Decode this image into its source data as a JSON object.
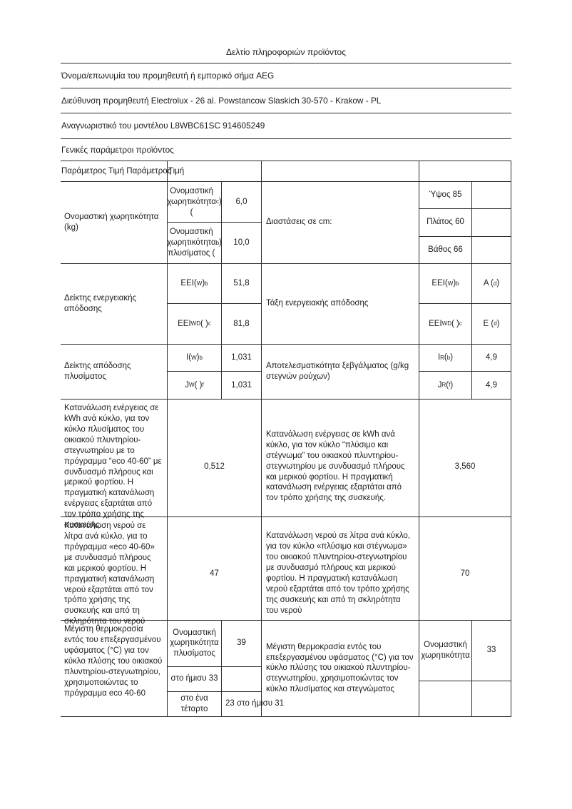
{
  "doc": {
    "title": "Δελτίο πληροφοριών προϊόντος",
    "supplier": "Όνομα/επωνυμία του προμηθευτή ή εμπορικό σήμα AEG",
    "address": "Διεύθυνση προμηθευτή Electrolux - 26 al. Powstancow Slaskich 30-570 - Krakow - PL",
    "model": "Αναγνωριστικό του μοντέλου L8WBC61SC 914605249",
    "section": "Γενικές παράμετροι προϊόντος",
    "header_col1": "Παράμετρος Τιμή Παράμετρος",
    "header_col2": "Τιμή"
  },
  "rows": {
    "capacity": {
      "label": "Ονομαστική χωρητικότητα (kg)",
      "sub": [
        {
          "label_html": "Ονομαστική χωρητικότητα (<sup>c</sup>)",
          "value": "6,0"
        },
        {
          "label_html": "Ονομαστική χωρητικότητα πλυσίματος (<sup>b</sup>)",
          "value": "10,0"
        }
      ],
      "mid_label": "Διαστάσεις σε cm:",
      "right_sub": [
        {
          "label": "Ύψος 85",
          "value": ""
        },
        {
          "label": "Πλάτος 60",
          "value": ""
        },
        {
          "label": "Βάθος 66",
          "value": ""
        }
      ]
    },
    "energy_index": {
      "label": "Δείκτης ενεργειακής απόδοσης",
      "sub": [
        {
          "label_html": "EEI(<sub>W</sub>)<sup>b</sup>",
          "value": "51,8"
        },
        {
          "label_html": "EEI<sub>WD</sub>( )<sup>c</sup>",
          "value": "81,8"
        }
      ],
      "mid_label": "Τάξη ενεργειακής απόδοσης",
      "right_sub": [
        {
          "label_html": "EEI(<sub>W</sub>)<sup>b</sup>",
          "value_html": "A (<sup>d</sup>)"
        },
        {
          "label_html": "EEI<sub>WD</sub>( )<sup>c</sup>",
          "value_html": "E (<sup>d</sup>)"
        }
      ]
    },
    "wash_index": {
      "label": "Δείκτης απόδοσης πλυσίματος",
      "sub": [
        {
          "label_html": "I(<sub>W</sub>)<sup>b</sup>",
          "value": "1,031"
        },
        {
          "label_html": "J<sub>W</sub>( )<sup>f</sup>",
          "value": "1,031"
        }
      ],
      "mid_label": "Αποτελεσματικότητα ξεβγάλματος (g/kg στεγνών ρούχων)",
      "right_sub": [
        {
          "label_html": "I<sub>R</sub>(<sup>b</sup>)",
          "value": "4,9"
        },
        {
          "label_html": "J<sub>R</sub>(<sup>f</sup>)",
          "value": "4,9"
        }
      ]
    },
    "energy_consumption": {
      "label": "Κατανάλωση ενέργειας σε kWh ανά κύκλο, για τον κύκλο πλυσίματος του οικιακού πλυντηρίου-στεγνωτηρίου με το πρόγραμμα “eco 40-60” με συνδυασμό πλήρους και μερικού φορτίου. Η πραγματική κατανάλωση ενέργειας εξαρτάται από τον τρόπο χρήσης της συσκευής.",
      "value": "0,512",
      "mid_label": "Κατανάλωση ενέργειας σε kWh ανά κύκλο, για τον κύκλο “πλύσιμο και στέγνωμα” του οικιακού πλυντηρίου- στεγνωτηρίου με συνδυασμό πλήρους και μερικού φορτίου. Η πραγματική κατανάλωση ενέργειας εξαρτάται από τον τρόπο χρήσης της συσκευής.",
      "right_value": "3,560"
    },
    "water_consumption": {
      "label": "Κατανάλωση νερού σε λίτρα ανά κύκλο, για το πρόγραμμα «eco 40-60» με συνδυασμό πλήρους και μερικού φορτίου. Η πραγματική κατανάλωση νερού εξαρτάται από τον τρόπο χρήσης της συσκευής και από τη σκληρότητα του νερού",
      "value": "47",
      "mid_label": "Κατανάλωση νερού σε λίτρα ανά κύκλο, για τον κύκλο «πλύσιμο και στέγνωμα» του οικιακού πλυντηρίου-στεγνωτηρίου με συνδυασμό πλήρους και μερικού φορτίου. Η πραγματική κατανάλωση νερού εξαρτάται από τον τρόπο χρήσης της συσκευής και από τη σκληρότητα του νερού",
      "right_value": "70"
    },
    "max_temperature": {
      "label": "Μέγιστη θερμοκρασία εντός του επεξεργασμένου υφάσματος (°C) για τον κύκλο πλύσης του οικιακού πλυντηρίου-στεγνωτηρίου, χρησιμοποιώντας το πρόγραμμα eco 40-60",
      "sub": [
        {
          "label": "Ονομαστική χωρητικότητα πλυσίματος",
          "value": "39"
        },
        {
          "label": "στο ήμισυ 33",
          "value": ""
        },
        {
          "label": "στο ένα τέταρτο",
          "value": "23 στο ήμισυ 31"
        }
      ],
      "mid_label": "Μέγιστη θερμοκρασία εντός του επεξεργασμένου υφάσματος (°C) για τον κύκλο πλύσης του οικιακού πλυντηρίου-στεγνωτηρίου, χρησιμοποιώντας τον κύκλο πλυσίματος και στεγνώματος",
      "right_sub": [
        {
          "label": "Ονομαστική χωρητικότητα",
          "value": "33"
        },
        {
          "label": "",
          "value": ""
        }
      ]
    }
  }
}
